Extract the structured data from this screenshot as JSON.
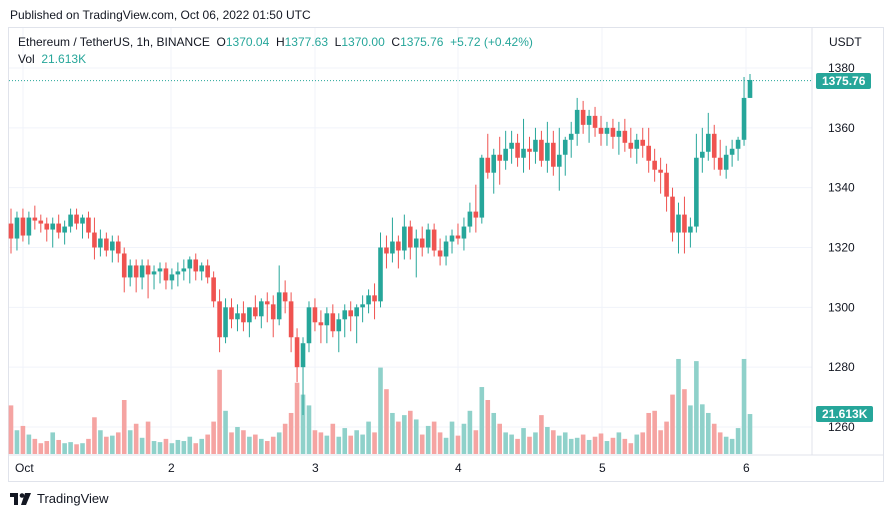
{
  "header": {
    "published": "Published on TradingView.com, Oct 06, 2022 01:50 UTC"
  },
  "legend": {
    "symbol": "Ethereum / TetherUS, 1h, BINANCE",
    "o_label": "O",
    "o": "1370.04",
    "h_label": "H",
    "h": "1377.63",
    "l_label": "L",
    "l": "1370.00",
    "c_label": "C",
    "c": "1375.76",
    "change": "+5.72 (+0.42%)",
    "vol_label": "Vol",
    "vol": "21.613K"
  },
  "axis": {
    "currency": "USDT",
    "price_tag": "1375.76",
    "volume_tag": "21.613K"
  },
  "footer": {
    "brand": "TradingView"
  },
  "colors": {
    "up": "#26a69a",
    "down": "#ef5350",
    "grid": "#f0f3fa",
    "text": "#131722"
  },
  "chart_data": {
    "type": "candlestick",
    "symbol": "Ethereum / TetherUS",
    "interval": "1h",
    "exchange": "BINANCE",
    "y_axis": {
      "label": "USDT",
      "ticks": [
        1260,
        1280,
        1300,
        1320,
        1340,
        1360,
        1380
      ],
      "range": [
        1250,
        1385
      ]
    },
    "x_axis": {
      "ticks": [
        "Oct",
        "2",
        "3",
        "4",
        "5",
        "6"
      ]
    },
    "last_price": 1375.76,
    "grid": true,
    "candles": [
      [
        1328,
        1333,
        1318,
        1323,
        0.45
      ],
      [
        1323,
        1332,
        1319,
        1330,
        0.22
      ],
      [
        1330,
        1333,
        1322,
        1324,
        0.26
      ],
      [
        1324,
        1332,
        1321,
        1330,
        0.18
      ],
      [
        1330,
        1334,
        1326,
        1329,
        0.14
      ],
      [
        1329,
        1331,
        1325,
        1328,
        0.1
      ],
      [
        1328,
        1330,
        1322,
        1326,
        0.12
      ],
      [
        1326,
        1330,
        1320,
        1328,
        0.2
      ],
      [
        1328,
        1331,
        1323,
        1325,
        0.13
      ],
      [
        1325,
        1329,
        1321,
        1327,
        0.1
      ],
      [
        1327,
        1333,
        1325,
        1331,
        0.11
      ],
      [
        1331,
        1333,
        1326,
        1328,
        0.09
      ],
      [
        1328,
        1331,
        1323,
        1330,
        0.1
      ],
      [
        1330,
        1332,
        1323,
        1325,
        0.14
      ],
      [
        1325,
        1330,
        1316,
        1320,
        0.34
      ],
      [
        1320,
        1326,
        1317,
        1323,
        0.22
      ],
      [
        1323,
        1325,
        1317,
        1319,
        0.16
      ],
      [
        1319,
        1324,
        1315,
        1322,
        0.17
      ],
      [
        1322,
        1324,
        1315,
        1318,
        0.2
      ],
      [
        1318,
        1320,
        1305,
        1310,
        0.5
      ],
      [
        1310,
        1316,
        1307,
        1314,
        0.22
      ],
      [
        1314,
        1316,
        1305,
        1310,
        0.28
      ],
      [
        1310,
        1316,
        1306,
        1314,
        0.15
      ],
      [
        1314,
        1316,
        1303,
        1311,
        0.3
      ],
      [
        1311,
        1314,
        1306,
        1312,
        0.12
      ],
      [
        1312,
        1315,
        1308,
        1313,
        0.11
      ],
      [
        1313,
        1315,
        1306,
        1309,
        0.14
      ],
      [
        1309,
        1313,
        1306,
        1311,
        0.1
      ],
      [
        1311,
        1315,
        1307,
        1312,
        0.13
      ],
      [
        1312,
        1316,
        1309,
        1313,
        0.12
      ],
      [
        1313,
        1317,
        1308,
        1316,
        0.16
      ],
      [
        1316,
        1318,
        1309,
        1312,
        0.1
      ],
      [
        1312,
        1315,
        1309,
        1314,
        0.14
      ],
      [
        1314,
        1316,
        1308,
        1310,
        0.18
      ],
      [
        1310,
        1312,
        1300,
        1302,
        0.3
      ],
      [
        1302,
        1306,
        1285,
        1290,
        0.78
      ],
      [
        1290,
        1303,
        1288,
        1300,
        0.4
      ],
      [
        1300,
        1303,
        1293,
        1296,
        0.2
      ],
      [
        1296,
        1301,
        1292,
        1298,
        0.25
      ],
      [
        1298,
        1302,
        1292,
        1295,
        0.22
      ],
      [
        1295,
        1300,
        1290,
        1300,
        0.16
      ],
      [
        1300,
        1304,
        1296,
        1297,
        0.18
      ],
      [
        1297,
        1303,
        1293,
        1302,
        0.14
      ],
      [
        1302,
        1305,
        1295,
        1301,
        0.12
      ],
      [
        1301,
        1304,
        1290,
        1296,
        0.16
      ],
      [
        1296,
        1314,
        1294,
        1305,
        0.2
      ],
      [
        1305,
        1309,
        1298,
        1302,
        0.28
      ],
      [
        1302,
        1305,
        1285,
        1290,
        0.38
      ],
      [
        1290,
        1293,
        1275,
        1280,
        0.66
      ],
      [
        1280,
        1290,
        1264,
        1288,
        0.55
      ],
      [
        1288,
        1302,
        1285,
        1300,
        0.45
      ],
      [
        1300,
        1303,
        1292,
        1295,
        0.22
      ],
      [
        1295,
        1299,
        1288,
        1294,
        0.2
      ],
      [
        1294,
        1300,
        1288,
        1298,
        0.17
      ],
      [
        1298,
        1301,
        1290,
        1292,
        0.28
      ],
      [
        1292,
        1298,
        1285,
        1296,
        0.16
      ],
      [
        1296,
        1301,
        1290,
        1299,
        0.24
      ],
      [
        1299,
        1302,
        1292,
        1297,
        0.17
      ],
      [
        1297,
        1301,
        1288,
        1300,
        0.22
      ],
      [
        1300,
        1304,
        1295,
        1301,
        0.18
      ],
      [
        1301,
        1306,
        1298,
        1304,
        0.3
      ],
      [
        1304,
        1308,
        1296,
        1302,
        0.2
      ],
      [
        1302,
        1325,
        1300,
        1320,
        0.8
      ],
      [
        1320,
        1324,
        1313,
        1318,
        0.6
      ],
      [
        1318,
        1330,
        1315,
        1322,
        0.38
      ],
      [
        1322,
        1324,
        1313,
        1319,
        0.3
      ],
      [
        1319,
        1331,
        1316,
        1327,
        0.36
      ],
      [
        1327,
        1329,
        1316,
        1320,
        0.4
      ],
      [
        1320,
        1326,
        1310,
        1323,
        0.32
      ],
      [
        1323,
        1327,
        1317,
        1320,
        0.18
      ],
      [
        1320,
        1328,
        1318,
        1326,
        0.26
      ],
      [
        1326,
        1328,
        1317,
        1319,
        0.3
      ],
      [
        1319,
        1323,
        1314,
        1317,
        0.2
      ],
      [
        1317,
        1324,
        1314,
        1322,
        0.15
      ],
      [
        1322,
        1326,
        1318,
        1324,
        0.3
      ],
      [
        1324,
        1328,
        1321,
        1323,
        0.17
      ],
      [
        1323,
        1330,
        1319,
        1327,
        0.28
      ],
      [
        1327,
        1335,
        1325,
        1332,
        0.4
      ],
      [
        1332,
        1341,
        1325,
        1330,
        0.22
      ],
      [
        1330,
        1351,
        1328,
        1350,
        0.62
      ],
      [
        1350,
        1358,
        1343,
        1345,
        0.5
      ],
      [
        1345,
        1353,
        1338,
        1351,
        0.38
      ],
      [
        1351,
        1357,
        1341,
        1349,
        0.28
      ],
      [
        1349,
        1359,
        1346,
        1353,
        0.2
      ],
      [
        1353,
        1359,
        1348,
        1355,
        0.18
      ],
      [
        1355,
        1358,
        1347,
        1350,
        0.14
      ],
      [
        1350,
        1363,
        1345,
        1353,
        0.24
      ],
      [
        1353,
        1357,
        1346,
        1352,
        0.16
      ],
      [
        1352,
        1360,
        1348,
        1356,
        0.2
      ],
      [
        1356,
        1359,
        1347,
        1349,
        0.36
      ],
      [
        1349,
        1362,
        1345,
        1355,
        0.25
      ],
      [
        1355,
        1359,
        1344,
        1347,
        0.22
      ],
      [
        1347,
        1360,
        1339,
        1351,
        0.17
      ],
      [
        1351,
        1357,
        1344,
        1356,
        0.2
      ],
      [
        1356,
        1362,
        1350,
        1358,
        0.14
      ],
      [
        1358,
        1370,
        1354,
        1366,
        0.15
      ],
      [
        1366,
        1369,
        1358,
        1361,
        0.18
      ],
      [
        1361,
        1366,
        1355,
        1364,
        0.13
      ],
      [
        1364,
        1367,
        1357,
        1360,
        0.16
      ],
      [
        1360,
        1364,
        1354,
        1358,
        0.19
      ],
      [
        1358,
        1362,
        1354,
        1360,
        0.12
      ],
      [
        1360,
        1363,
        1353,
        1357,
        0.15
      ],
      [
        1357,
        1362,
        1351,
        1359,
        0.2
      ],
      [
        1359,
        1363,
        1352,
        1355,
        0.14
      ],
      [
        1355,
        1360,
        1350,
        1353,
        0.1
      ],
      [
        1353,
        1358,
        1348,
        1356,
        0.18
      ],
      [
        1356,
        1360,
        1350,
        1354,
        0.2
      ],
      [
        1354,
        1360,
        1345,
        1349,
        0.38
      ],
      [
        1349,
        1353,
        1342,
        1346,
        0.4
      ],
      [
        1346,
        1350,
        1338,
        1345,
        0.22
      ],
      [
        1345,
        1348,
        1332,
        1337,
        0.3
      ],
      [
        1337,
        1340,
        1322,
        1325,
        0.55
      ],
      [
        1325,
        1335,
        1318,
        1331,
        0.88
      ],
      [
        1331,
        1337,
        1318,
        1325,
        0.6
      ],
      [
        1325,
        1330,
        1320,
        1327,
        0.45
      ],
      [
        1327,
        1358,
        1325,
        1350,
        0.86
      ],
      [
        1350,
        1360,
        1345,
        1352,
        0.46
      ],
      [
        1352,
        1365,
        1349,
        1358,
        0.38
      ],
      [
        1358,
        1361,
        1346,
        1350,
        0.28
      ],
      [
        1350,
        1356,
        1344,
        1346,
        0.2
      ],
      [
        1346,
        1354,
        1343,
        1351,
        0.16
      ],
      [
        1351,
        1356,
        1347,
        1353,
        0.14
      ],
      [
        1353,
        1357,
        1349,
        1356,
        0.24
      ],
      [
        1356,
        1377,
        1354,
        1370,
        0.88
      ],
      [
        1370,
        1378,
        1370,
        1376,
        0.37
      ]
    ]
  }
}
